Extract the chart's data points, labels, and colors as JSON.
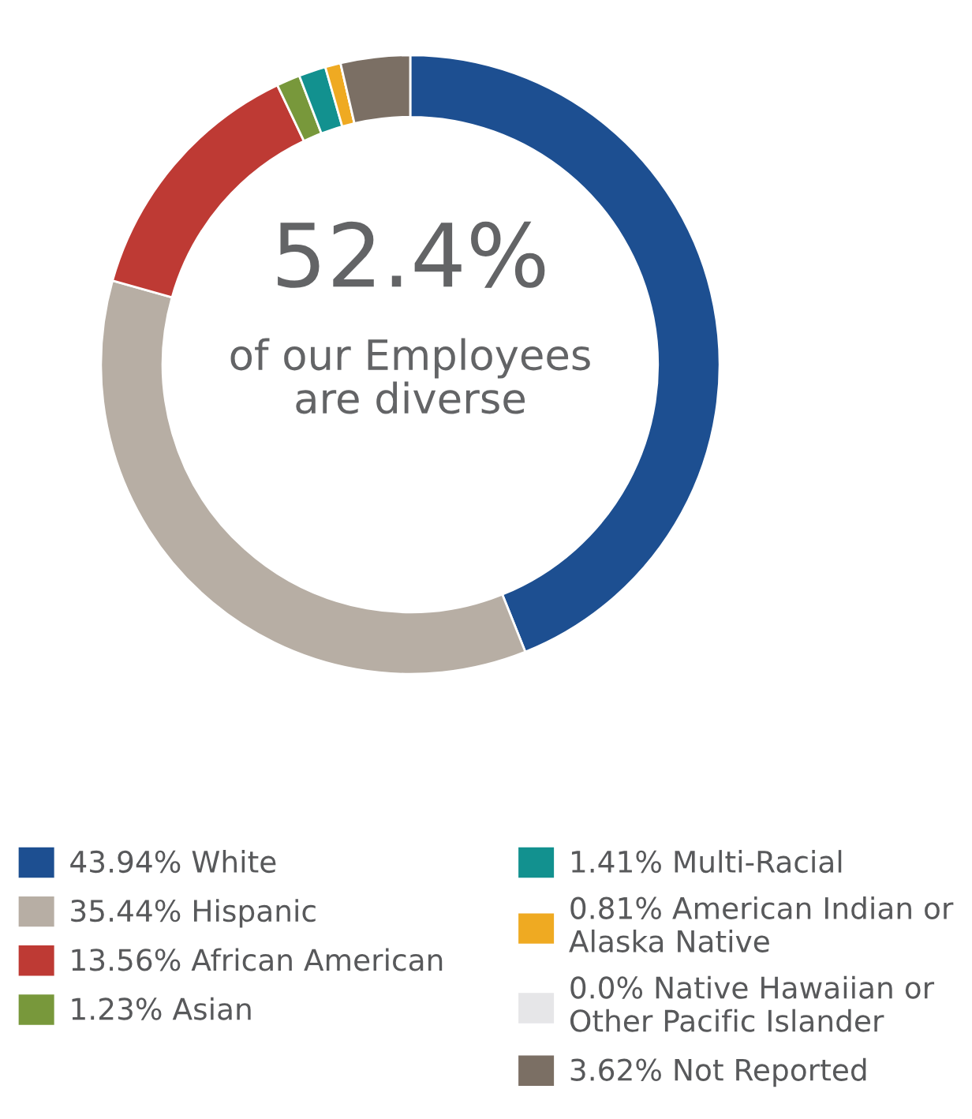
{
  "chart_data": {
    "type": "donut",
    "categories": [
      "White",
      "Hispanic",
      "African American",
      "Asian",
      "Multi-Racial",
      "American Indian or\nAlaska Native",
      "Native Hawaiian or\nOther Pacific Islander",
      "Not Reported"
    ],
    "values": [
      43.94,
      35.44,
      13.56,
      1.23,
      1.41,
      0.81,
      0.0,
      3.62
    ],
    "value_labels": [
      "43.94%",
      "35.44%",
      "13.56%",
      "1.23%",
      "1.41%",
      "0.81%",
      "0.0%",
      "3.62%"
    ],
    "colors": [
      "#1d4f91",
      "#b7aea4",
      "#be3a34",
      "#78983b",
      "#12918f",
      "#efaa22",
      "#e6e6e8",
      "#7b6f64"
    ],
    "annotations": [
      "52.4%",
      "of our Employees\nare diverse"
    ],
    "legend": "bottom"
  }
}
